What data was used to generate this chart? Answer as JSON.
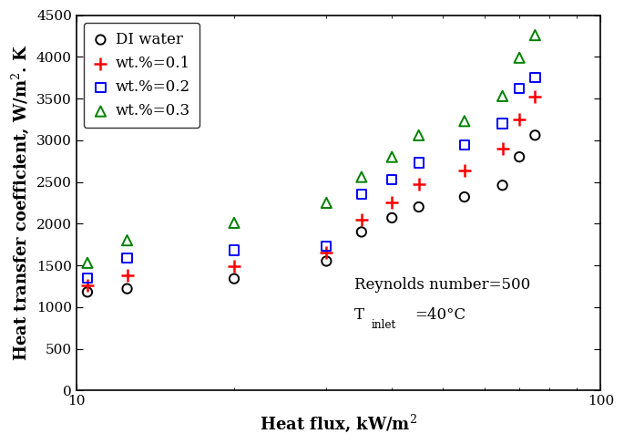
{
  "di_water_x": [
    10.5,
    12.5,
    20.0,
    30.0,
    35.0,
    40.0,
    45.0,
    55.0,
    65.0,
    70.0,
    75.0
  ],
  "di_water_y": [
    1180,
    1220,
    1340,
    1550,
    1900,
    2070,
    2200,
    2320,
    2460,
    2800,
    3060
  ],
  "wt01_x": [
    10.5,
    12.5,
    20.0,
    30.0,
    35.0,
    40.0,
    45.0,
    55.0,
    65.0,
    70.0,
    75.0
  ],
  "wt01_y": [
    1260,
    1380,
    1490,
    1650,
    2050,
    2250,
    2470,
    2640,
    2900,
    3250,
    3520
  ],
  "wt02_x": [
    10.5,
    12.5,
    20.0,
    30.0,
    35.0,
    40.0,
    45.0,
    55.0,
    65.0,
    70.0,
    75.0
  ],
  "wt02_y": [
    1350,
    1590,
    1680,
    1730,
    2350,
    2530,
    2730,
    2940,
    3200,
    3620,
    3750
  ],
  "wt03_x": [
    10.5,
    12.5,
    20.0,
    30.0,
    35.0,
    40.0,
    45.0,
    55.0,
    65.0,
    70.0,
    75.0
  ],
  "wt03_y": [
    1530,
    1800,
    2010,
    2250,
    2560,
    2800,
    3060,
    3230,
    3530,
    3990,
    4260
  ],
  "di_water_color": "#000000",
  "wt01_color": "#ff0000",
  "wt02_color": "#0000ff",
  "wt03_color": "#008000",
  "xlabel": "Heat flux, kW/m$^2$",
  "ylabel": "Heat transfer coefficient, W/m$^2$. K",
  "xlim": [
    10,
    100
  ],
  "ylim": [
    0,
    4500
  ],
  "yticks": [
    0,
    500,
    1000,
    1500,
    2000,
    2500,
    3000,
    3500,
    4000,
    4500
  ],
  "legend_labels": [
    "DI water",
    "wt.%=0.1",
    "wt.%=0.2",
    "wt.%=0.3"
  ],
  "annotation_line1": "Reynolds number=500",
  "background_color": "#ffffff",
  "body_fontsize": 12,
  "label_fontsize": 13,
  "tick_fontsize": 11,
  "legend_fontsize": 12
}
